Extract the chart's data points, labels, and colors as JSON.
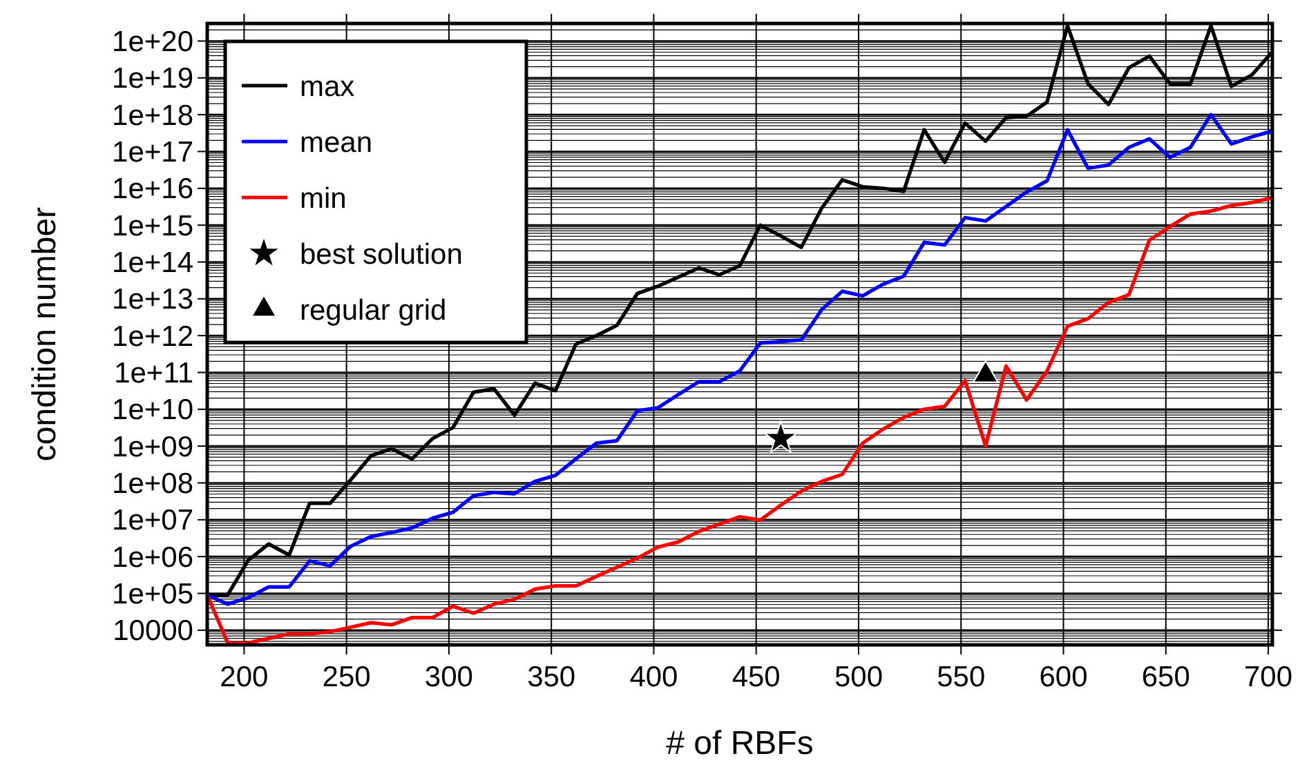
{
  "chart_data": {
    "type": "line",
    "xlabel": "# of RBFs",
    "ylabel": "condition number",
    "log": "y",
    "grid": true,
    "legend": "top left",
    "line_style": "solid",
    "xlim": [
      182,
      702
    ],
    "xticks": [
      200,
      250,
      300,
      350,
      400,
      450,
      500,
      550,
      600,
      650,
      700
    ],
    "ylim": [
      4000,
      3e+20
    ],
    "yticks": [
      {
        "value": 1e+20,
        "label": "1e+20"
      },
      {
        "value": 1e+19,
        "label": "1e+19"
      },
      {
        "value": 1e+18,
        "label": "1e+18"
      },
      {
        "value": 1e+17,
        "label": "1e+17"
      },
      {
        "value": 1e+16,
        "label": "1e+16"
      },
      {
        "value": 1000000000000000.0,
        "label": "1e+15"
      },
      {
        "value": 100000000000000.0,
        "label": "1e+14"
      },
      {
        "value": 10000000000000.0,
        "label": "1e+13"
      },
      {
        "value": 1000000000000.0,
        "label": "1e+12"
      },
      {
        "value": 100000000000.0,
        "label": "1e+11"
      },
      {
        "value": 10000000000.0,
        "label": "1e+10"
      },
      {
        "value": 1000000000.0,
        "label": "1e+09"
      },
      {
        "value": 100000000.0,
        "label": "1e+08"
      },
      {
        "value": 10000000.0,
        "label": "1e+07"
      },
      {
        "value": 1000000.0,
        "label": "1e+06"
      },
      {
        "value": 100000.0,
        "label": "1e+05"
      },
      10000
    ],
    "x": [
      182,
      192,
      202,
      212,
      222,
      232,
      242,
      252,
      262,
      272,
      282,
      292,
      302,
      312,
      322,
      332,
      342,
      352,
      362,
      372,
      382,
      392,
      402,
      412,
      422,
      432,
      442,
      452,
      462,
      472,
      482,
      492,
      502,
      512,
      522,
      532,
      542,
      552,
      562,
      572,
      582,
      592,
      602,
      612,
      622,
      632,
      642,
      652,
      662,
      672,
      682,
      692,
      702
    ],
    "series": [
      {
        "name": "max",
        "color": "#000000",
        "values": [
          91000.0,
          91000.0,
          790000.0,
          2200000.0,
          1100000.0,
          28000000.0,
          28000000.0,
          120000000.0,
          550000000.0,
          850000000.0,
          450000000.0,
          1600000000.0,
          3200000000.0,
          29000000000.0,
          36000000000.0,
          6900000000.0,
          51000000000.0,
          32000000000.0,
          590000000000.0,
          1000000000000.0,
          1900000000000.0,
          14000000000000.0,
          22000000000000.0,
          39000000000000.0,
          69000000000000.0,
          45000000000000.0,
          79000000000000.0,
          1000000000000000.0,
          510000000000000.0,
          250000000000000.0,
          2900000000000000.0,
          1.7e+16,
          1.1e+16,
          1e+16,
          8300000000000000.0,
          3.9e+17,
          5.1e+16,
          5.9e+17,
          1.9e+17,
          8.3e+17,
          9.1e+17,
          2.2e+18,
          2.6e+20,
          6.9e+18,
          1.9e+18,
          1.9e+19,
          3.9e+19,
          6.9e+18,
          6.9e+18,
          2.6e+20,
          5.9e+18,
          1.2e+19,
          5.1e+19
        ]
      },
      {
        "name": "mean",
        "color": "#0000ff",
        "values": [
          91000.0,
          51000.0,
          76000.0,
          150000.0,
          150000.0,
          760000.0,
          560000.0,
          1900000.0,
          3500000.0,
          4500000.0,
          6000000.0,
          11000000.0,
          16000000.0,
          45000000.0,
          55000000.0,
          51000000.0,
          110000000.0,
          160000000.0,
          450000000.0,
          1200000000.0,
          1400000000.0,
          9100000000.0,
          11000000000.0,
          25000000000.0,
          56000000000.0,
          56000000000.0,
          110000000000.0,
          630000000000.0,
          690000000000.0,
          760000000000.0,
          5100000000000.0,
          16000000000000.0,
          12000000000000.0,
          25000000000000.0,
          41000000000000.0,
          340000000000000.0,
          290000000000000.0,
          1600000000000000.0,
          1300000000000000.0,
          3200000000000000.0,
          7900000000000000.0,
          1.6e+16,
          3.9e+17,
          3.5e+16,
          4.3e+16,
          1.3e+17,
          2.2e+17,
          6.9e+16,
          1.3e+17,
          1e+18,
          1.6e+17,
          2.5e+17,
          3.6e+17
        ]
      },
      {
        "name": "min",
        "color": "#ff0000",
        "values": [
          91000.0,
          4500.0,
          4500.0,
          6000.0,
          7900.0,
          7900.0,
          9100.0,
          12000.0,
          16000.0,
          14000.0,
          22000.0,
          22000.0,
          45000.0,
          29000.0,
          51000.0,
          69000.0,
          130000.0,
          160000.0,
          160000.0,
          290000.0,
          510000.0,
          910000.0,
          1800000.0,
          2500000.0,
          4800000.0,
          7600000.0,
          12000000.0,
          9800000.0,
          25000000.0,
          60000000.0,
          110000000.0,
          170000000.0,
          1200000000.0,
          2900000000.0,
          6000000000.0,
          10000000000.0,
          12000000000.0,
          60000000000.0,
          1000000000.0,
          150000000000.0,
          18000000000.0,
          110000000000.0,
          1800000000000.0,
          2900000000000.0,
          7900000000000.0,
          13000000000000.0,
          390000000000000.0,
          910000000000000.0,
          2000000000000000.0,
          2400000000000000.0,
          3400000000000000.0,
          4100000000000000.0,
          5600000000000000.0
        ]
      },
      {
        "name": "best solution",
        "type": "scatter",
        "marker": "star",
        "color": "#000000",
        "x": [
          462
        ],
        "values": [
          1600000000.0
        ]
      },
      {
        "name": "regular grid",
        "type": "scatter",
        "marker": "triangle",
        "color": "#000000",
        "x": [
          562
        ],
        "values": [
          85000000000.0
        ]
      }
    ]
  }
}
